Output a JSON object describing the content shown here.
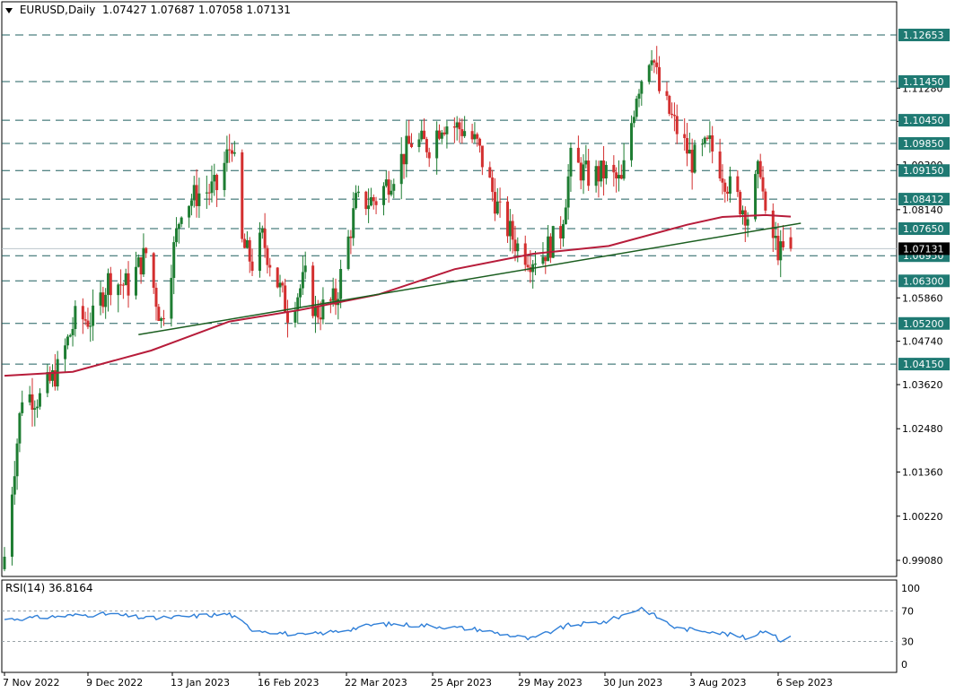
{
  "header": {
    "symbol_timeframe": "EURUSD,Daily",
    "ohlc": "1.07427 1.07687 1.07058 1.07131"
  },
  "rsi_panel": {
    "label": "RSI(14) 36.8164",
    "levels": [
      "100",
      "70",
      "30",
      "0"
    ]
  },
  "colors": {
    "bull": "#1e7d32",
    "bear": "#d32f2f",
    "ma": "#b71c3a",
    "trendline": "#1b5e20",
    "level_line": "#1f5f5f",
    "level_label_bg": "#1f7a73",
    "rsi_line": "#2f7fd8",
    "current_price_bg": "#000000"
  },
  "chart_data": {
    "type": "candlestick",
    "symbol": "EURUSD",
    "timeframe": "Daily",
    "x_ticks": [
      "7 Nov 2022",
      "9 Dec 2022",
      "13 Jan 2023",
      "16 Feb 2023",
      "22 Mar 2023",
      "25 Apr 2023",
      "29 May 2023",
      "30 Jun 2023",
      "3 Aug 2023",
      "6 Sep 2023"
    ],
    "y_ticks": [
      "1.11280",
      "1.10420",
      "1.09300",
      "1.08140",
      "1.05860",
      "1.04740",
      "1.03620",
      "1.02480",
      "1.01360",
      "1.00220",
      "0.99080"
    ],
    "ylim": [
      0.985,
      1.1335
    ],
    "horizontal_levels": [
      "1.12653",
      "1.11450",
      "1.10450",
      "1.09850",
      "1.09150",
      "1.08412",
      "1.07650",
      "1.06950",
      "1.06300",
      "1.05200",
      "1.04150"
    ],
    "current_price": "1.07131",
    "ohlc_last": {
      "open": 1.07427,
      "high": 1.07687,
      "low": 1.07058,
      "close": 1.07131
    },
    "anchors": [
      [
        "2022-11-04",
        0.9918
      ],
      [
        "2022-11-11",
        1.0336
      ],
      [
        "2022-11-18",
        1.0327
      ],
      [
        "2022-11-25",
        1.0399
      ],
      [
        "2022-12-02",
        1.0531
      ],
      [
        "2022-12-09",
        1.0531
      ],
      [
        "2022-12-15",
        1.0632
      ],
      [
        "2022-12-23",
        1.0618
      ],
      [
        "2022-12-30",
        1.0702
      ],
      [
        "2023-01-05",
        1.0524
      ],
      [
        "2023-01-13",
        1.0825
      ],
      [
        "2023-01-20",
        1.0856
      ],
      [
        "2023-01-27",
        1.0869
      ],
      [
        "2023-02-02",
        1.0992
      ],
      [
        "2023-02-06",
        1.0725
      ],
      [
        "2023-02-10",
        1.0676
      ],
      [
        "2023-02-14",
        1.074
      ],
      [
        "2023-02-24",
        1.055
      ],
      [
        "2023-03-03",
        1.0636
      ],
      [
        "2023-03-07",
        1.0548
      ],
      [
        "2023-03-15",
        1.058
      ],
      [
        "2023-03-23",
        1.083
      ],
      [
        "2023-03-31",
        1.084
      ],
      [
        "2023-04-06",
        1.09
      ],
      [
        "2023-04-14",
        1.099
      ],
      [
        "2023-04-21",
        1.098
      ],
      [
        "2023-04-26",
        1.104
      ],
      [
        "2023-05-05",
        1.102
      ],
      [
        "2023-05-10",
        1.098
      ],
      [
        "2023-05-19",
        1.08
      ],
      [
        "2023-05-26",
        1.072
      ],
      [
        "2023-05-31",
        1.069
      ],
      [
        "2023-06-05",
        1.07
      ],
      [
        "2023-06-12",
        1.076
      ],
      [
        "2023-06-16",
        1.094
      ],
      [
        "2023-06-23",
        1.09
      ],
      [
        "2023-06-30",
        1.091
      ],
      [
        "2023-07-06",
        1.088
      ],
      [
        "2023-07-12",
        1.112
      ],
      [
        "2023-07-18",
        1.123
      ],
      [
        "2023-07-21",
        1.112
      ],
      [
        "2023-07-28",
        1.102
      ],
      [
        "2023-08-03",
        1.094
      ],
      [
        "2023-08-10",
        1.098
      ],
      [
        "2023-08-18",
        1.087
      ],
      [
        "2023-08-25",
        1.08
      ],
      [
        "2023-08-30",
        1.093
      ],
      [
        "2023-09-01",
        1.078
      ],
      [
        "2023-09-07",
        1.07
      ],
      [
        "2023-09-11",
        1.0713
      ]
    ],
    "moving_average": [
      [
        "2022-11-04",
        1.0385
      ],
      [
        "2022-12-01",
        1.0395
      ],
      [
        "2023-01-01",
        1.045
      ],
      [
        "2023-02-01",
        1.0525
      ],
      [
        "2023-03-01",
        1.0555
      ],
      [
        "2023-04-01",
        1.0595
      ],
      [
        "2023-05-01",
        1.066
      ],
      [
        "2023-06-01",
        1.07
      ],
      [
        "2023-07-01",
        1.072
      ],
      [
        "2023-08-01",
        1.0775
      ],
      [
        "2023-08-15",
        1.0795
      ],
      [
        "2023-09-01",
        1.08
      ],
      [
        "2023-09-11",
        1.0796
      ]
    ],
    "trendline": {
      "from": [
        "2022-12-27",
        1.0491
      ],
      "to": [
        "2023-09-15",
        1.0779
      ]
    },
    "rsi": {
      "name": "RSI(14)",
      "period": 14,
      "last": 36.8164,
      "levels": [
        30,
        70
      ],
      "ylim": [
        0,
        100
      ],
      "anchors": [
        [
          "2022-11-04",
          59
        ],
        [
          "2022-12-01",
          64
        ],
        [
          "2022-12-15",
          66
        ],
        [
          "2023-01-01",
          60
        ],
        [
          "2023-02-01",
          66
        ],
        [
          "2023-02-10",
          46
        ],
        [
          "2023-03-01",
          38
        ],
        [
          "2023-03-15",
          43
        ],
        [
          "2023-04-01",
          53
        ],
        [
          "2023-04-20",
          51
        ],
        [
          "2023-05-10",
          46
        ],
        [
          "2023-05-31",
          33
        ],
        [
          "2023-06-15",
          51
        ],
        [
          "2023-06-30",
          56
        ],
        [
          "2023-07-14",
          74
        ],
        [
          "2023-07-28",
          47
        ],
        [
          "2023-08-10",
          44
        ],
        [
          "2023-08-25",
          34
        ],
        [
          "2023-09-01",
          46
        ],
        [
          "2023-09-07",
          31
        ],
        [
          "2023-09-11",
          37
        ]
      ]
    }
  }
}
